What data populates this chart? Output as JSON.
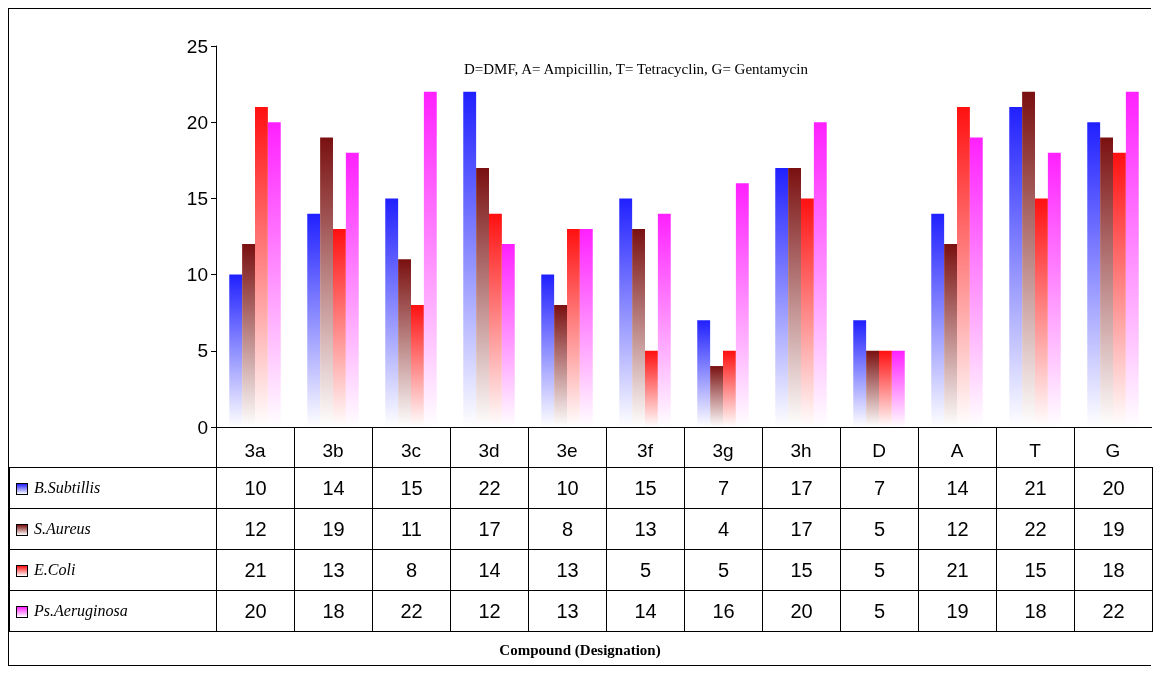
{
  "chart_data": {
    "type": "bar",
    "legend": "bottom left",
    "annotations": [
      "D=DMF, A= Ampicillin, T= Tetracyclin, G= Gentamycin",
      "Compound (Designation)"
    ],
    "categories": [
      "3a",
      "3b",
      "3c",
      "3d",
      "3e",
      "3f",
      "3g",
      "3h",
      "D",
      "A",
      "T",
      "G"
    ],
    "series": [
      {
        "name": "B.Subtillis",
        "color": "#2020ff",
        "values": [
          10,
          14,
          15,
          22,
          10,
          15,
          7,
          17,
          7,
          14,
          21,
          20
        ]
      },
      {
        "name": "S.Aureus",
        "color": "#7a1010",
        "values": [
          12,
          19,
          11,
          17,
          8,
          13,
          4,
          17,
          5,
          12,
          22,
          19
        ]
      },
      {
        "name": "E.Coli",
        "color": "#ff1010",
        "values": [
          21,
          13,
          8,
          14,
          13,
          5,
          5,
          15,
          5,
          21,
          15,
          18
        ]
      },
      {
        "name": "Ps.Aeruginosa",
        "color": "#ff20ff",
        "values": [
          20,
          18,
          22,
          12,
          13,
          14,
          16,
          20,
          5,
          19,
          18,
          22
        ]
      }
    ],
    "ylim": [
      0,
      25
    ],
    "yticks": [
      0,
      5,
      10,
      15,
      20,
      25
    ],
    "grid": false,
    "data_labels": true
  }
}
